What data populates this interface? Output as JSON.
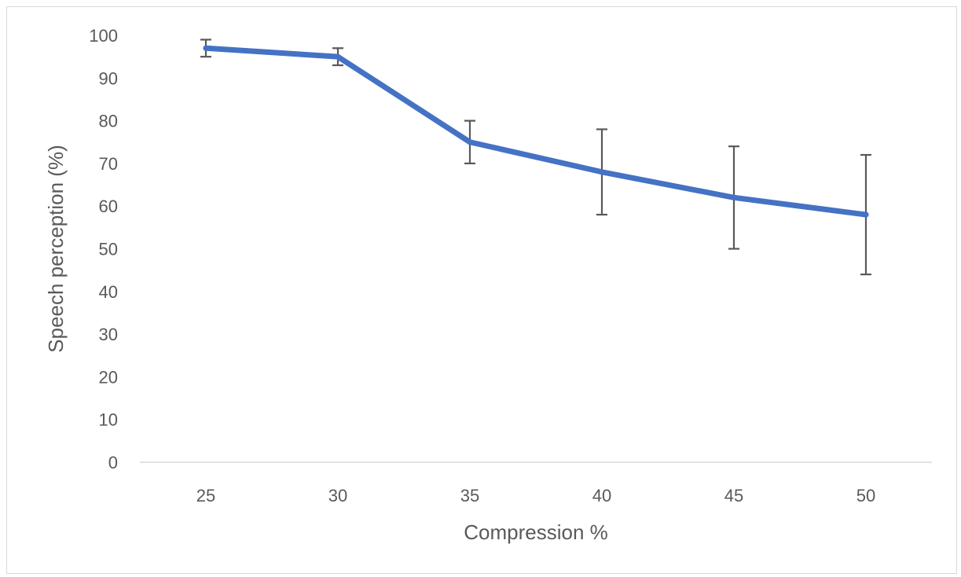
{
  "chart_data": {
    "type": "line",
    "title": "",
    "xlabel": "Compression %",
    "ylabel": "Speech perception (%)",
    "ylim": [
      0,
      100
    ],
    "yticks": [
      0,
      10,
      20,
      30,
      40,
      50,
      60,
      70,
      80,
      90,
      100
    ],
    "categories": [
      "25",
      "30",
      "35",
      "40",
      "45",
      "50"
    ],
    "grid": false,
    "legend": "none",
    "series": [
      {
        "color": "#4472c4",
        "values": [
          97,
          95,
          75,
          68,
          62,
          58
        ],
        "error_low": [
          95,
          93,
          70,
          58,
          50,
          44
        ],
        "error_high": [
          99,
          97,
          80,
          78,
          74,
          72
        ]
      }
    ]
  }
}
